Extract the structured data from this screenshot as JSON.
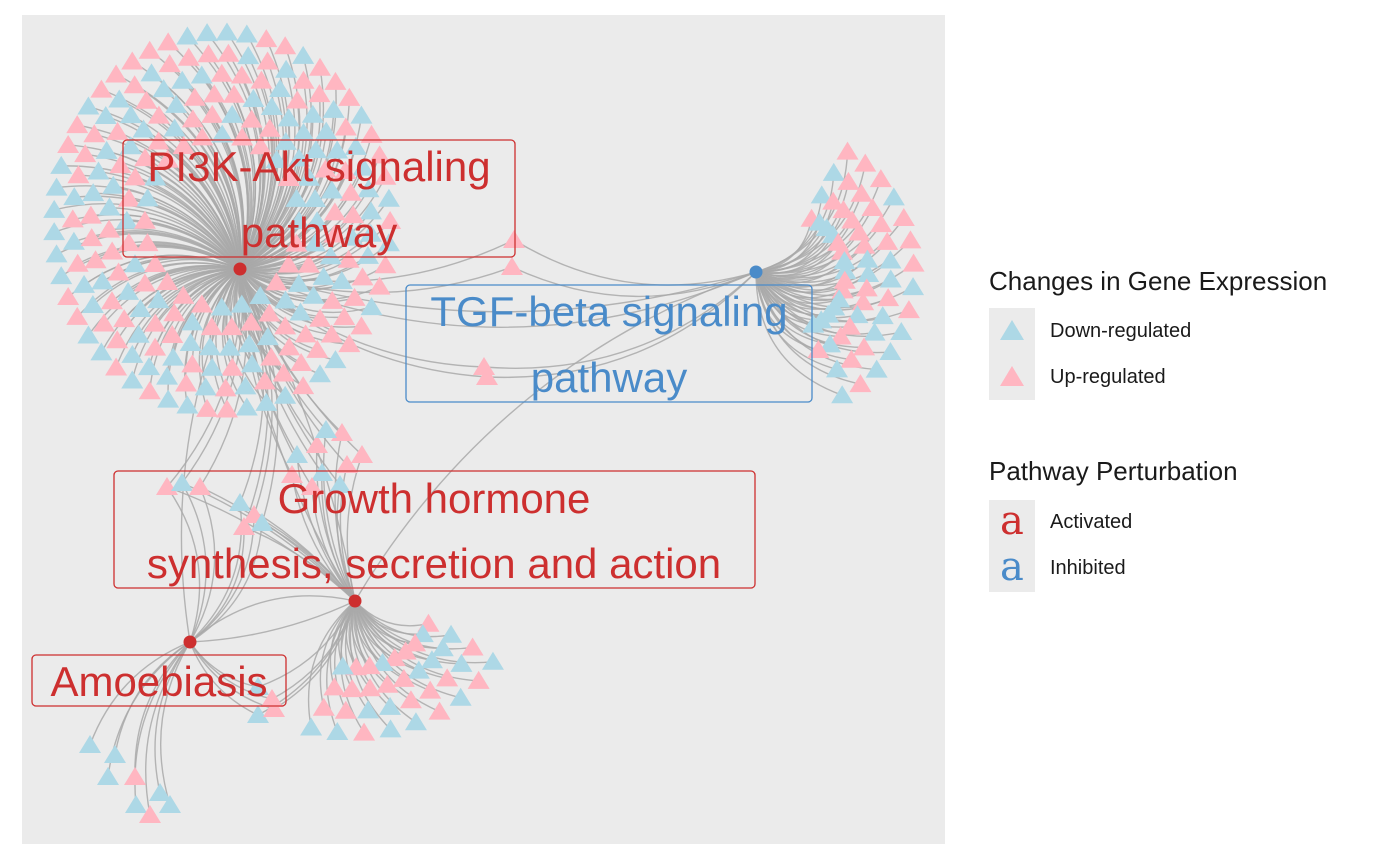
{
  "network": {
    "hubs": [
      {
        "id": "pi3k",
        "label_lines": [
          "PI3K-Akt signaling",
          "pathway"
        ],
        "perturbation": "Activated"
      },
      {
        "id": "tgf",
        "label_lines": [
          "TGF-beta signaling",
          "pathway"
        ],
        "perturbation": "Inhibited"
      },
      {
        "id": "gh",
        "label_lines": [
          "Growth hormone",
          "synthesis, secretion and action"
        ],
        "perturbation": "Activated"
      },
      {
        "id": "amoe",
        "label_lines": [
          "Amoebiasis"
        ],
        "perturbation": "Activated"
      }
    ]
  },
  "legend": {
    "gene_expression": {
      "title": "Changes in Gene Expression",
      "items": [
        {
          "label": "Down-regulated",
          "color": "#add8e6"
        },
        {
          "label": "Up-regulated",
          "color": "#ffb6c1"
        }
      ]
    },
    "pathway": {
      "title": "Pathway Perturbation",
      "items": [
        {
          "label": "Activated",
          "glyph": "a",
          "color": "#cd2f2f"
        },
        {
          "label": "Inhibited",
          "glyph": "a",
          "color": "#4a8bc9"
        }
      ]
    }
  },
  "colors": {
    "panel_background": "#ebebeb",
    "edge": "#a9a9a9",
    "down_regulated": "#add8e6",
    "up_regulated": "#ffb6c1",
    "activated": "#cd2f2f",
    "inhibited": "#4a8bc9"
  }
}
